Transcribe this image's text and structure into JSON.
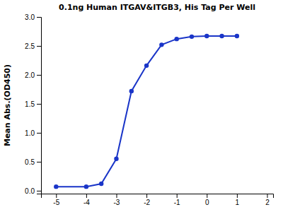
{
  "chart_data": {
    "type": "line",
    "title": "0.1ng Human ITGAV&ITGB3, His Tag Per Well",
    "y_label": "Mean Abs.(OD450)",
    "x": [
      -5.0,
      -4.0,
      -3.5,
      -3.0,
      -2.5,
      -2.0,
      -1.5,
      -1.0,
      -0.5,
      0.0,
      0.5,
      1.0
    ],
    "values": [
      0.07,
      0.07,
      0.12,
      0.55,
      1.72,
      2.16,
      2.52,
      2.62,
      2.66,
      2.67,
      2.67,
      2.67
    ],
    "color": "#1a35c8",
    "marker": "circle",
    "line_style": "solid",
    "xlim": [
      -5.5,
      2.2
    ],
    "ylim": [
      -0.05,
      3.0
    ],
    "xticks": [
      -5,
      -4,
      -3,
      -2,
      -1,
      0,
      1,
      2
    ],
    "yticks": [
      {
        "value": 0.0,
        "label": "0.0"
      },
      0.5,
      {
        "value": 1.0,
        "label": "1.0"
      },
      1.5,
      {
        "value": 2.0,
        "label": "2.0"
      },
      2.5,
      {
        "value": 3.0,
        "label": "3.0"
      }
    ],
    "grid": false
  }
}
